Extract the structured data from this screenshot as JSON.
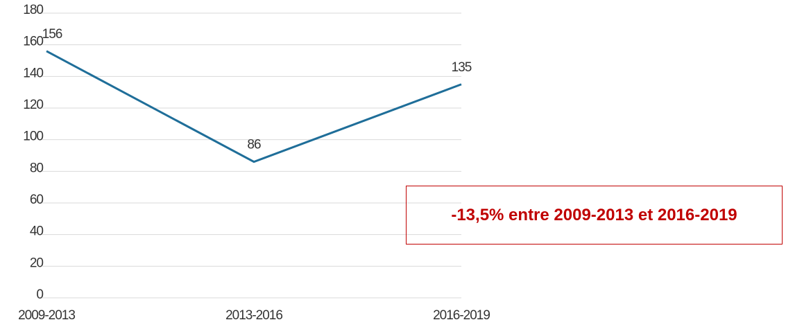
{
  "chart_data": {
    "type": "line",
    "categories": [
      "2009-2013",
      "2013-2016",
      "2016-2019"
    ],
    "series": [
      {
        "color": "#1f6e99",
        "values": [
          156,
          86,
          135
        ]
      }
    ],
    "ylim": [
      0,
      180
    ],
    "yticks": [
      0,
      20,
      40,
      60,
      80,
      100,
      120,
      140,
      160,
      180
    ],
    "grid": true,
    "annotation": "-13,5% entre 2009-2013 et 2016-2019"
  }
}
